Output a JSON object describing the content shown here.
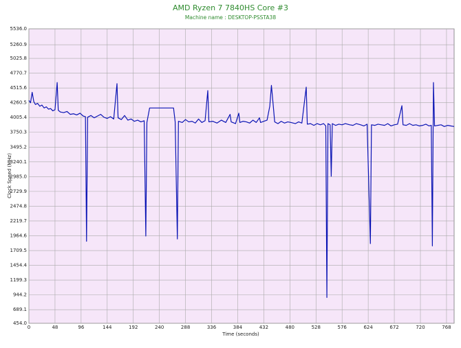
{
  "chart_data": {
    "type": "line",
    "title": "AMD Ryzen 7 7840HS Core #3",
    "subtitle": "Machine name : DESKTOP-PSSTA38",
    "x_label": "Time (seconds)",
    "y_label": "Clock Speed (MHz)",
    "xlim": [
      0,
      782
    ],
    "ylim": [
      454,
      5536
    ],
    "xticks": [
      0,
      48,
      96,
      144,
      192,
      240,
      288,
      336,
      384,
      432,
      480,
      528,
      576,
      624,
      672,
      720,
      768
    ],
    "yticks": [
      {
        "value": 454,
        "label": "454.0"
      },
      689.1,
      944.2,
      1199.3,
      1454.4,
      1709.5,
      1964.6,
      2219.7,
      2474.8,
      2729.9,
      {
        "value": 2985,
        "label": "2985.0"
      },
      3240.1,
      3495.2,
      3750.3,
      4005.4,
      4260.5,
      4515.6,
      4770.7,
      5025.8,
      5260.9,
      {
        "value": 5536,
        "label": "5536.0"
      }
    ],
    "grid": true,
    "background": "#f6e6f9",
    "x": [
      0,
      3,
      6,
      9,
      12,
      16,
      20,
      24,
      28,
      32,
      36,
      40,
      44,
      48,
      52,
      54,
      58,
      64,
      70,
      76,
      82,
      88,
      94,
      100,
      104,
      106,
      108,
      114,
      120,
      126,
      132,
      138,
      144,
      150,
      156,
      162,
      164,
      170,
      176,
      182,
      188,
      194,
      200,
      206,
      212,
      215,
      217,
      222,
      240,
      266,
      269,
      273,
      275,
      282,
      288,
      294,
      300,
      306,
      312,
      318,
      324,
      329,
      331,
      338,
      346,
      354,
      362,
      370,
      372,
      380,
      386,
      388,
      394,
      400,
      406,
      412,
      418,
      424,
      426,
      432,
      438,
      443,
      446,
      449,
      452,
      458,
      464,
      470,
      476,
      482,
      490,
      496,
      502,
      510,
      512,
      518,
      524,
      530,
      536,
      542,
      546,
      548,
      550,
      554,
      556,
      558,
      564,
      570,
      576,
      582,
      590,
      596,
      602,
      610,
      616,
      622,
      628,
      630,
      636,
      642,
      648,
      654,
      660,
      666,
      672,
      678,
      686,
      688,
      694,
      700,
      706,
      712,
      718,
      724,
      730,
      736,
      740,
      742,
      744,
      746,
      752,
      758,
      764,
      770,
      776,
      782
    ],
    "series": [
      {
        "name": "Clock Speed",
        "color": "#0a14b4",
        "values": [
          4300,
          4260,
          4440,
          4280,
          4230,
          4250,
          4200,
          4220,
          4170,
          4190,
          4150,
          4160,
          4120,
          4140,
          4610,
          4130,
          4100,
          4090,
          4110,
          4060,
          4070,
          4050,
          4080,
          4030,
          4020,
          1870,
          4010,
          4040,
          4000,
          4030,
          4060,
          4010,
          3990,
          4020,
          3980,
          4590,
          4000,
          3970,
          4040,
          3960,
          3980,
          3940,
          3960,
          3930,
          3950,
          1960,
          3920,
          4170,
          4170,
          4170,
          3930,
          1910,
          3940,
          3920,
          3970,
          3930,
          3940,
          3910,
          3980,
          3920,
          3950,
          4470,
          3930,
          3940,
          3910,
          3960,
          3920,
          4060,
          3930,
          3900,
          4080,
          3920,
          3940,
          3930,
          3910,
          3960,
          3920,
          4000,
          3920,
          3940,
          3960,
          4200,
          4560,
          4250,
          3930,
          3900,
          3940,
          3910,
          3930,
          3920,
          3900,
          3930,
          3910,
          4530,
          3890,
          3900,
          3870,
          3900,
          3880,
          3900,
          3860,
          900,
          3900,
          3880,
          2990,
          3900,
          3870,
          3890,
          3880,
          3900,
          3880,
          3870,
          3900,
          3880,
          3860,
          3890,
          1830,
          3880,
          3870,
          3890,
          3880,
          3870,
          3900,
          3860,
          3880,
          3890,
          4210,
          3880,
          3870,
          3900,
          3870,
          3880,
          3860,
          3870,
          3890,
          3860,
          3870,
          1790,
          4610,
          3860,
          3870,
          3880,
          3850,
          3870,
          3860,
          3850
        ]
      }
    ]
  }
}
